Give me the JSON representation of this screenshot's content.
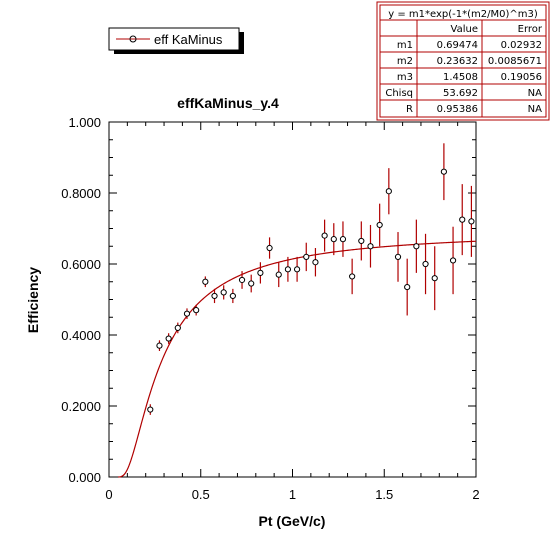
{
  "legend": {
    "label": "eff KaMinus"
  },
  "fit_box": {
    "formula": "y = m1*exp(-1*(m2/M0)^m3)",
    "header": [
      "",
      "Value",
      "Error"
    ],
    "rows": [
      [
        "m1",
        "0.69474",
        "0.02932"
      ],
      [
        "m2",
        "0.23632",
        "0.0085671"
      ],
      [
        "m3",
        "1.4508",
        "0.19056"
      ],
      [
        "Chisq",
        "53.692",
        "NA"
      ],
      [
        "R",
        "0.95386",
        "NA"
      ]
    ]
  },
  "chart_data": {
    "type": "scatter",
    "title": "effKaMinus_y.4",
    "xlabel": "Pt (GeV/c)",
    "ylabel": "Efficiency",
    "xlim": [
      0,
      2
    ],
    "ylim": [
      0,
      1
    ],
    "x_ticks": [
      "0",
      "0.5",
      "1",
      "1.5",
      "2"
    ],
    "y_ticks": [
      "0.000",
      "0.2000",
      "0.4000",
      "0.6000",
      "0.8000",
      "1.000"
    ],
    "series": [
      {
        "name": "eff KaMinus",
        "color": "#b00000",
        "points": [
          {
            "x": 0.225,
            "y": 0.19,
            "err": 0.015
          },
          {
            "x": 0.275,
            "y": 0.37,
            "err": 0.015
          },
          {
            "x": 0.325,
            "y": 0.39,
            "err": 0.015
          },
          {
            "x": 0.375,
            "y": 0.42,
            "err": 0.015
          },
          {
            "x": 0.425,
            "y": 0.46,
            "err": 0.015
          },
          {
            "x": 0.475,
            "y": 0.47,
            "err": 0.015
          },
          {
            "x": 0.525,
            "y": 0.55,
            "err": 0.015
          },
          {
            "x": 0.575,
            "y": 0.51,
            "err": 0.02
          },
          {
            "x": 0.625,
            "y": 0.52,
            "err": 0.02
          },
          {
            "x": 0.675,
            "y": 0.51,
            "err": 0.02
          },
          {
            "x": 0.725,
            "y": 0.555,
            "err": 0.025
          },
          {
            "x": 0.775,
            "y": 0.545,
            "err": 0.025
          },
          {
            "x": 0.825,
            "y": 0.575,
            "err": 0.03
          },
          {
            "x": 0.875,
            "y": 0.645,
            "err": 0.03
          },
          {
            "x": 0.925,
            "y": 0.57,
            "err": 0.035
          },
          {
            "x": 0.975,
            "y": 0.585,
            "err": 0.035
          },
          {
            "x": 1.025,
            "y": 0.585,
            "err": 0.035
          },
          {
            "x": 1.075,
            "y": 0.62,
            "err": 0.04
          },
          {
            "x": 1.125,
            "y": 0.605,
            "err": 0.04
          },
          {
            "x": 1.175,
            "y": 0.68,
            "err": 0.045
          },
          {
            "x": 1.225,
            "y": 0.67,
            "err": 0.045
          },
          {
            "x": 1.275,
            "y": 0.67,
            "err": 0.05
          },
          {
            "x": 1.325,
            "y": 0.565,
            "err": 0.05
          },
          {
            "x": 1.375,
            "y": 0.665,
            "err": 0.055
          },
          {
            "x": 1.425,
            "y": 0.65,
            "err": 0.06
          },
          {
            "x": 1.475,
            "y": 0.71,
            "err": 0.06
          },
          {
            "x": 1.525,
            "y": 0.805,
            "err": 0.065
          },
          {
            "x": 1.575,
            "y": 0.62,
            "err": 0.07
          },
          {
            "x": 1.625,
            "y": 0.535,
            "err": 0.08
          },
          {
            "x": 1.675,
            "y": 0.65,
            "err": 0.075
          },
          {
            "x": 1.725,
            "y": 0.6,
            "err": 0.085
          },
          {
            "x": 1.775,
            "y": 0.56,
            "err": 0.09
          },
          {
            "x": 1.825,
            "y": 0.86,
            "err": 0.08
          },
          {
            "x": 1.875,
            "y": 0.61,
            "err": 0.095
          },
          {
            "x": 1.925,
            "y": 0.725,
            "err": 0.1
          },
          {
            "x": 1.975,
            "y": 0.72,
            "err": 0.1
          }
        ]
      }
    ],
    "fit": {
      "m1": 0.69474,
      "m2": 0.23632,
      "m3": 1.4508,
      "color": "#b00000"
    }
  }
}
